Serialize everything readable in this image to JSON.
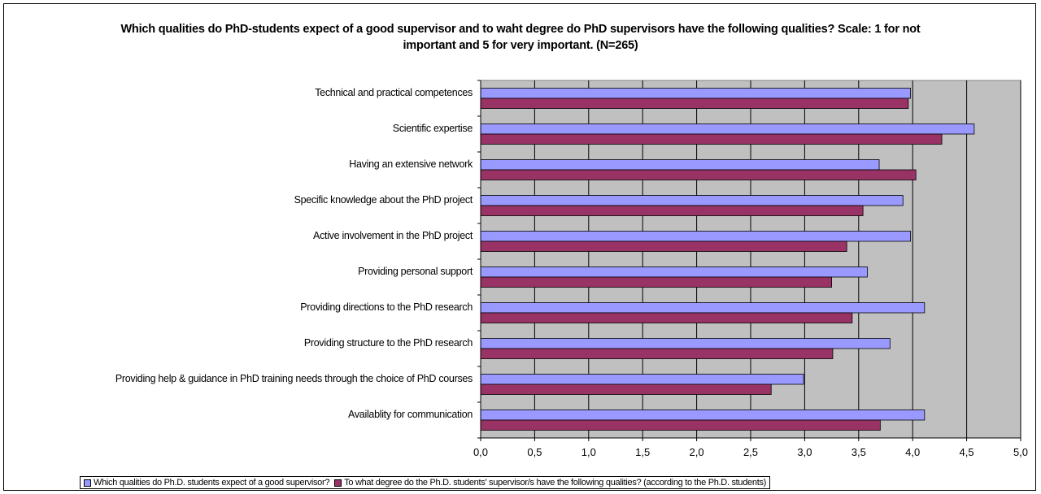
{
  "chart_data": {
    "type": "bar",
    "orientation": "horizontal",
    "title": "Which qualities do PhD-students expect of a good supervisor and to waht degree do PhD supervisors have the following qualities? Scale: 1 for not important and 5 for very important. (N=265)",
    "categories": [
      "Technical and practical competences",
      "Scientific expertise ",
      "Having an extensive network ",
      "Specific knowledge about the PhD project",
      "Active involvement in the PhD project",
      "Providing personal support ",
      "Providing directions to the PhD research",
      "Providing structure to the PhD research",
      "Providing help & guidance in PhD training needs through the choice of  PhD courses",
      "Availablity for communication"
    ],
    "series": [
      {
        "name": "Which qualities do Ph.D. students expect of a good supervisor?",
        "color": "#9999ff",
        "values": [
          3.98,
          4.57,
          3.69,
          3.91,
          3.98,
          3.58,
          4.11,
          3.79,
          2.99,
          4.11
        ]
      },
      {
        "name": "To what degree do the Ph.D. students' supervisor/s have the following qualities? (according to the Ph.D. students)",
        "color": "#993366",
        "values": [
          3.96,
          4.27,
          4.03,
          3.54,
          3.39,
          3.25,
          3.44,
          3.26,
          2.69,
          3.7
        ]
      }
    ],
    "xlim": [
      0,
      5
    ],
    "xticks": [
      "0,0",
      "0,5",
      "1,0",
      "1,5",
      "2,0",
      "2,5",
      "3,0",
      "3,5",
      "4,0",
      "4,5",
      "5,0"
    ],
    "grid": true,
    "plot_background": "#c0c0c0",
    "legend_position": "bottom"
  }
}
